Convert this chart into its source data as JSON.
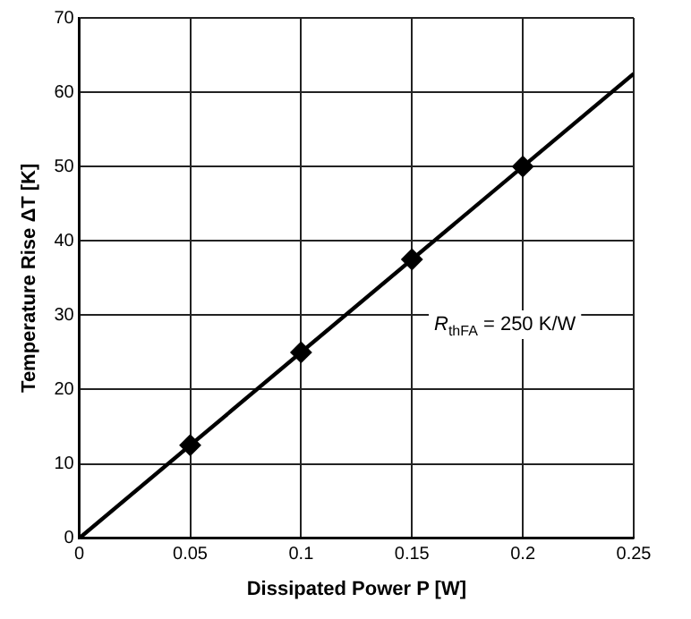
{
  "chart_data": {
    "type": "line",
    "xlabel": "Dissipated Power P [W]",
    "ylabel": "Temperature Rise ΔT [K]",
    "series": [
      {
        "type": "line",
        "color": "#000000",
        "x": [
          0,
          0.25
        ],
        "values": [
          0,
          62.5
        ],
        "marker": "none"
      },
      {
        "type": "scatter",
        "color": "#000000",
        "x": [
          0.05,
          0.1,
          0.15,
          0.2
        ],
        "values": [
          12.5,
          25,
          37.5,
          50
        ],
        "marker": "diamond"
      }
    ],
    "xlim": [
      0,
      0.25
    ],
    "xticks": [
      0,
      0.05,
      0.1,
      0.15,
      0.2,
      0.25
    ],
    "ylim": [
      0,
      70
    ],
    "yticks": [
      0,
      10,
      20,
      30,
      40,
      50,
      60,
      70
    ],
    "grid": true,
    "annotations": [
      "R$_{thFA}$ = 250 K/W"
    ]
  }
}
